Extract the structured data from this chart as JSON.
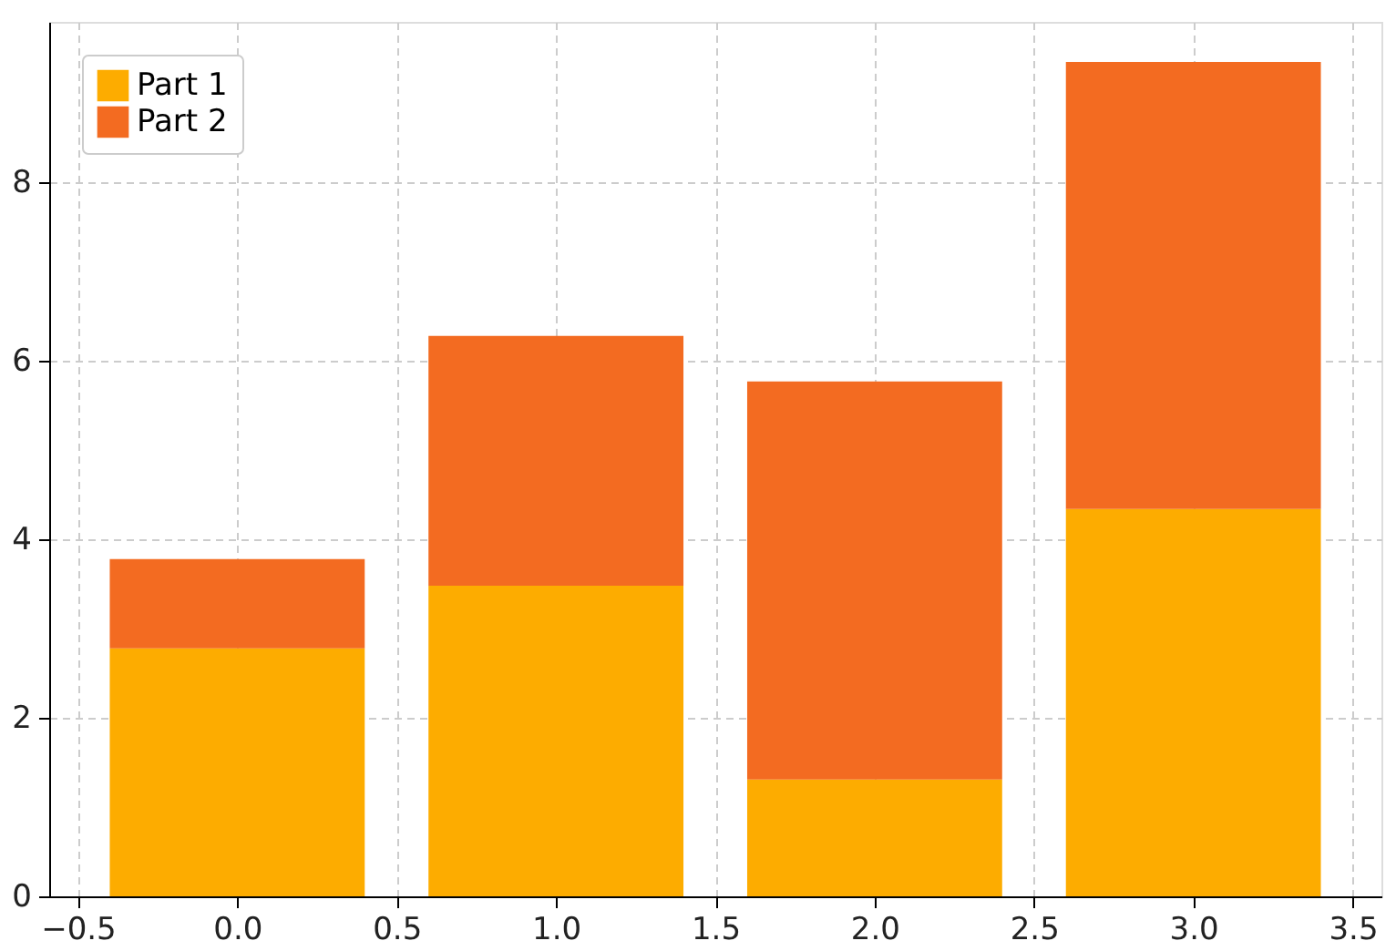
{
  "chart_data": {
    "type": "bar",
    "stacked": true,
    "x": [
      0,
      1,
      2,
      3
    ],
    "series": [
      {
        "name": "Part 1",
        "color": "#fdac00",
        "values": [
          2.78,
          3.48,
          1.31,
          4.34
        ]
      },
      {
        "name": "Part 2",
        "color": "#f36b21",
        "values": [
          1.0,
          2.8,
          4.46,
          5.01
        ]
      }
    ],
    "xlim": [
      -0.59,
      3.59
    ],
    "xticks": [
      {
        "value": -0.5,
        "label": "−0.5"
      },
      {
        "value": 0,
        "label": "0.0"
      },
      {
        "value": 0.5,
        "label": "0.5"
      },
      {
        "value": 1,
        "label": "1.0"
      },
      {
        "value": 1.5,
        "label": "1.5"
      },
      {
        "value": 2,
        "label": "2.0"
      },
      {
        "value": 2.5,
        "label": "2.5"
      },
      {
        "value": 3,
        "label": "3.0"
      },
      {
        "value": 3.5,
        "label": "3.5"
      }
    ],
    "ylim": [
      0,
      9.8
    ],
    "yticks": [
      0,
      2,
      4,
      6,
      8
    ],
    "grid": true,
    "legend": "top left"
  }
}
